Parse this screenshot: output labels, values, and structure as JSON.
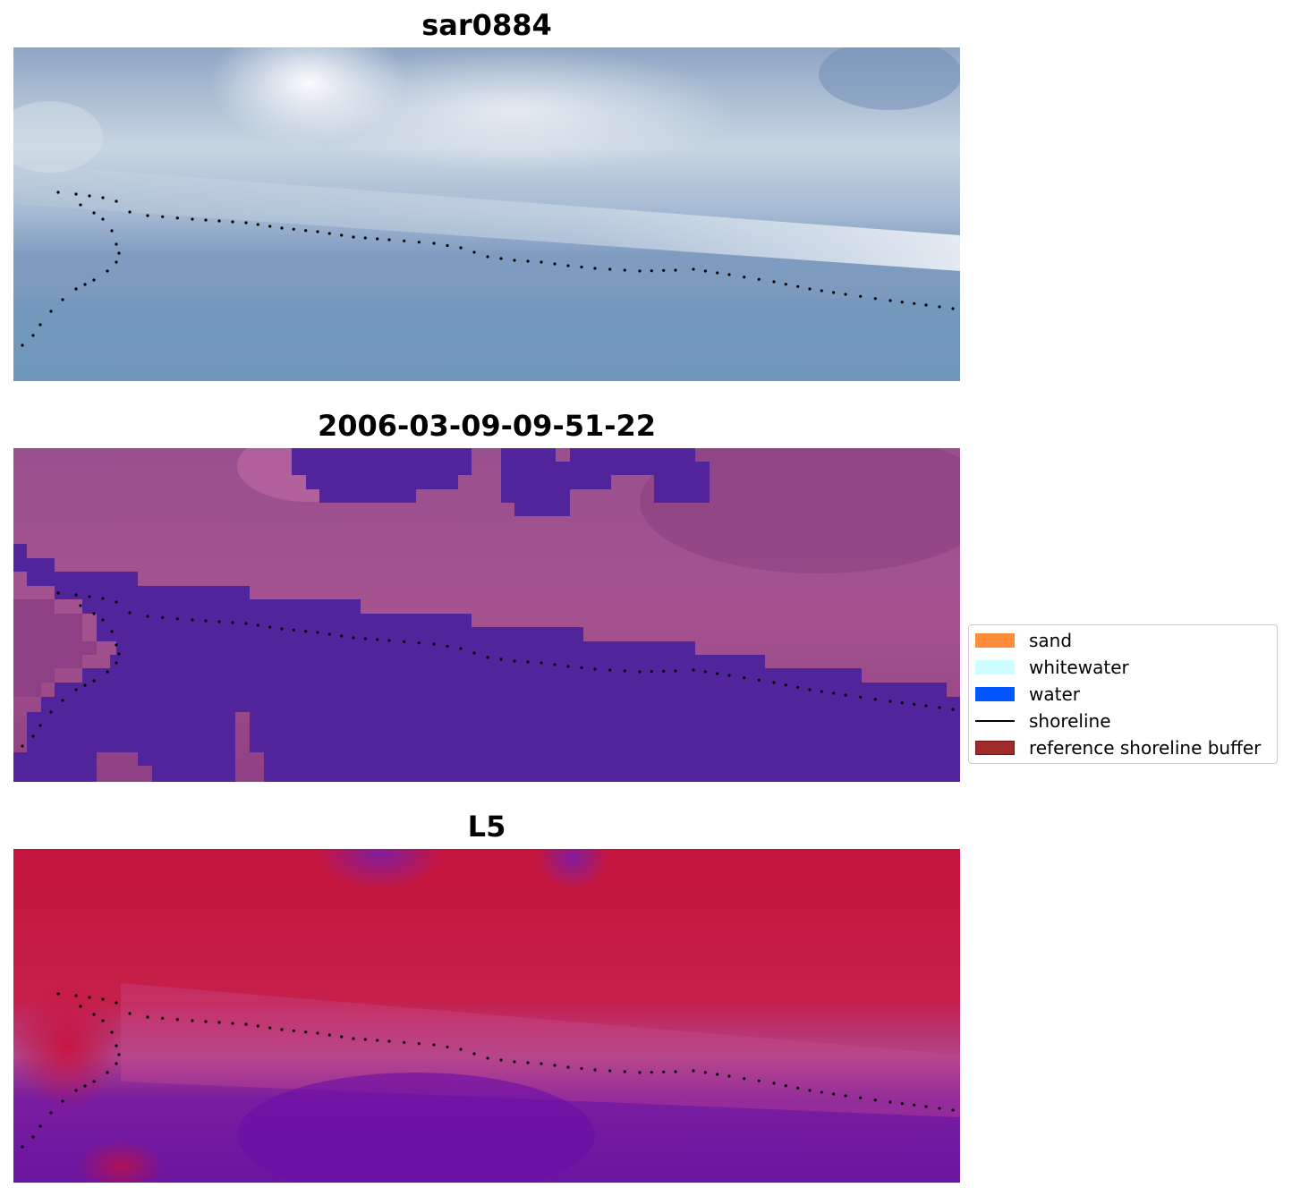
{
  "panels": [
    {
      "title": "sar0884",
      "type": "rgb-image"
    },
    {
      "title": "2006-03-09-09-51-22",
      "type": "classified-image"
    },
    {
      "title": "L5",
      "type": "mndwi-image"
    }
  ],
  "legend": {
    "items": [
      {
        "label": "sand",
        "color": "#ff8c3a",
        "kind": "patch"
      },
      {
        "label": "whitewater",
        "color": "#ccffff",
        "kind": "patch"
      },
      {
        "label": "water",
        "color": "#0055ff",
        "kind": "patch"
      },
      {
        "label": "shoreline",
        "color": "#000000",
        "kind": "line"
      },
      {
        "label": "reference shoreline buffer",
        "color": "#9e2a2a",
        "kind": "patch"
      }
    ]
  },
  "colors": {
    "water_class_overlay": "#52249b",
    "shoreline_dots": "#000000"
  }
}
